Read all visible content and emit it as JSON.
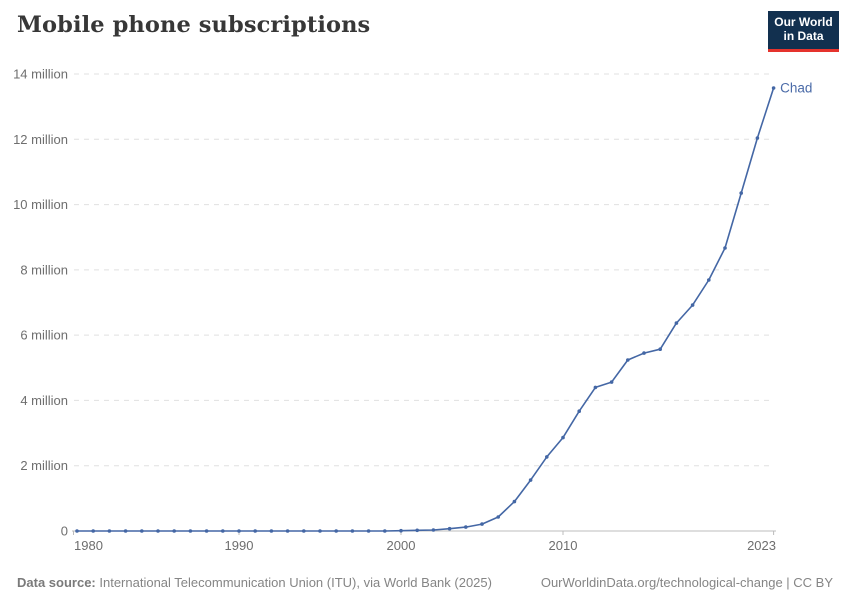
{
  "header": {
    "title": "Mobile phone subscriptions"
  },
  "logo": {
    "line1": "Our World",
    "line2": "in Data"
  },
  "chart_data": {
    "type": "line",
    "title": "Mobile phone subscriptions",
    "unit": "million",
    "grid": true,
    "legend_position": "end-of-line-label",
    "xlim": [
      1980,
      2023
    ],
    "ylim": [
      0,
      14
    ],
    "x": [
      1980,
      1981,
      1982,
      1983,
      1984,
      1985,
      1986,
      1987,
      1988,
      1989,
      1990,
      1991,
      1992,
      1993,
      1994,
      1995,
      1996,
      1997,
      1998,
      1999,
      2000,
      2001,
      2002,
      2003,
      2004,
      2005,
      2006,
      2007,
      2008,
      2009,
      2010,
      2011,
      2012,
      2013,
      2014,
      2015,
      2016,
      2017,
      2018,
      2019,
      2020,
      2021,
      2022,
      2023
    ],
    "series": [
      {
        "name": "Chad",
        "values": [
          0,
          0,
          0,
          0,
          0,
          0,
          0,
          0,
          0,
          0,
          0,
          0,
          0,
          0,
          0,
          0,
          0,
          0,
          0,
          0,
          0.01,
          0.02,
          0.03,
          0.07,
          0.12,
          0.21,
          0.43,
          0.9,
          1.56,
          2.27,
          2.86,
          3.67,
          4.4,
          4.56,
          5.24,
          5.45,
          5.57,
          6.37,
          6.92,
          7.69,
          8.67,
          10.35,
          12.04,
          13.57
        ]
      }
    ],
    "yticks": [
      {
        "value": 0,
        "label": "0"
      },
      {
        "value": 2,
        "label": "2 million"
      },
      {
        "value": 4,
        "label": "4 million"
      },
      {
        "value": 6,
        "label": "6 million"
      },
      {
        "value": 8,
        "label": "8 million"
      },
      {
        "value": 10,
        "label": "10 million"
      },
      {
        "value": 12,
        "label": "12 million"
      },
      {
        "value": 14,
        "label": "14 million"
      }
    ],
    "xticks": [
      {
        "value": 1980,
        "label": "1980",
        "align": "start"
      },
      {
        "value": 1990,
        "label": "1990",
        "align": "middle"
      },
      {
        "value": 2000,
        "label": "2000",
        "align": "middle"
      },
      {
        "value": 2010,
        "label": "2010",
        "align": "middle"
      },
      {
        "value": 2023,
        "label": "2023",
        "align": "end"
      }
    ],
    "entity_label": "Chad"
  },
  "colors": {
    "line": "#4467a5",
    "entity_label": "#4b6ba8",
    "grid": "#e0e0e0",
    "axis": "#bcbcbc",
    "tick_text": "#6e6e6e",
    "title": "#373737",
    "footer": "#858585",
    "logo_bg": "#12304f",
    "logo_stripe": "#e5332d"
  },
  "footer": {
    "source_label": "Data source:",
    "source_text": "International Telecommunication Union (ITU), via World Bank (2025)",
    "license_text": "OurWorldinData.org/technological-change | CC BY"
  }
}
